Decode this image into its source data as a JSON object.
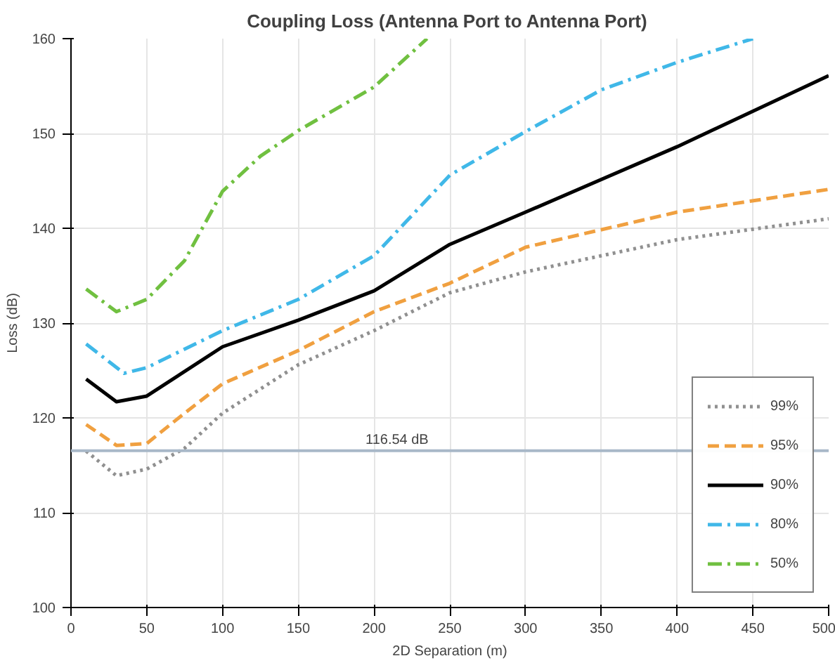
{
  "chart_data": {
    "type": "line",
    "title": "Coupling Loss  (Antenna Port to Antenna Port)",
    "xlabel": "2D Separation (m)",
    "ylabel": "Loss (dB)",
    "xlim": [
      0,
      500
    ],
    "xticks": [
      0,
      50,
      100,
      150,
      200,
      250,
      300,
      350,
      400,
      450,
      500
    ],
    "ylim": [
      100,
      160
    ],
    "yticks": [
      100,
      110,
      120,
      130,
      140,
      150,
      160
    ],
    "grid": true,
    "legend": "bottom right",
    "marker": "none",
    "series": [
      {
        "name": "99%",
        "color": "#909090",
        "line_style": "dotted",
        "x": [
          10,
          30,
          50,
          75,
          100,
          150,
          200,
          250,
          300,
          400,
          500
        ],
        "values": [
          116.5,
          113.9,
          114.6,
          116.8,
          120.5,
          125.6,
          129.2,
          133.2,
          135.4,
          138.8,
          141.0
        ]
      },
      {
        "name": "95%",
        "color": "#f0a040",
        "line_style": "dashed",
        "x": [
          10,
          30,
          50,
          75,
          100,
          150,
          200,
          250,
          300,
          400,
          500
        ],
        "values": [
          119.3,
          117.1,
          117.3,
          120.5,
          123.6,
          127.1,
          131.2,
          134.2,
          138.0,
          141.7,
          144.1
        ]
      },
      {
        "name": "90%",
        "color": "#000000",
        "line_style": "solid",
        "x": [
          10,
          30,
          50,
          100,
          150,
          200,
          250,
          300,
          400,
          500
        ],
        "values": [
          124.1,
          121.7,
          122.3,
          127.5,
          130.3,
          133.4,
          138.3,
          141.7,
          148.6,
          156.1
        ]
      },
      {
        "name": "80%",
        "color": "#40b8e8",
        "line_style": "dashdot",
        "x": [
          10,
          35,
          50,
          100,
          150,
          200,
          250,
          300,
          350,
          400,
          450
        ],
        "values": [
          127.8,
          124.7,
          125.3,
          129.2,
          132.5,
          137.1,
          145.6,
          150.2,
          154.6,
          157.5,
          160.0
        ]
      },
      {
        "name": "50%",
        "color": "#70c040",
        "line_style": "dashdot",
        "x": [
          10,
          30,
          50,
          75,
          100,
          125,
          150,
          200,
          235
        ],
        "values": [
          133.6,
          131.2,
          132.5,
          136.6,
          143.9,
          147.6,
          150.3,
          154.9,
          160.0
        ]
      }
    ],
    "ref_lines": [
      {
        "axis": "y",
        "value": 116.54,
        "label": "116.54 dB",
        "color": "#a8b8c8",
        "line_style": "solid"
      }
    ]
  }
}
